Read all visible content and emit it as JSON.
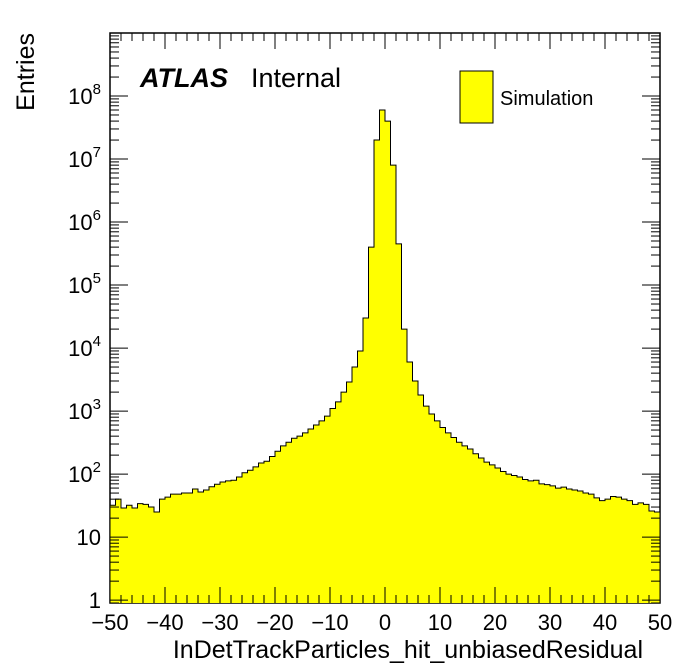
{
  "chart_data": {
    "type": "bar",
    "histogram": true,
    "xlabel": "InDetTrackParticles_hit_unbiasedResidual",
    "ylabel": "Entries",
    "xlim": [
      -50,
      50
    ],
    "ylim": [
      0.9,
      1000000000
    ],
    "log_y": true,
    "grid": false,
    "legend_position": "top-right",
    "label_atlas": "ATLAS",
    "label_status": "Internal",
    "x_ticks": [
      "−50",
      "−40",
      "−30",
      "−20",
      "−10",
      "0",
      "10",
      "20",
      "30",
      "40",
      "50"
    ],
    "x_tick_values": [
      -50,
      -40,
      -30,
      -20,
      -10,
      0,
      10,
      20,
      30,
      40,
      50
    ],
    "y_ticks": [
      {
        "value": 1,
        "base": "1",
        "exp": ""
      },
      {
        "value": 10,
        "base": "10",
        "exp": ""
      },
      {
        "value": 100,
        "base": "10",
        "exp": "2"
      },
      {
        "value": 1000,
        "base": "10",
        "exp": "3"
      },
      {
        "value": 10000,
        "base": "10",
        "exp": "4"
      },
      {
        "value": 100000,
        "base": "10",
        "exp": "5"
      },
      {
        "value": 1000000,
        "base": "10",
        "exp": "6"
      },
      {
        "value": 10000000,
        "base": "10",
        "exp": "7"
      },
      {
        "value": 100000000,
        "base": "10",
        "exp": "8"
      }
    ],
    "bin_width": 1,
    "x_min": -50,
    "series": [
      {
        "name": "Simulation",
        "color": "#ffff00",
        "edge_color": "#000000",
        "values": [
          32,
          40,
          29,
          32,
          29,
          34,
          33,
          30,
          25,
          40,
          43,
          48,
          48,
          50,
          50,
          58,
          52,
          56,
          63,
          69,
          75,
          78,
          80,
          90,
          105,
          115,
          130,
          150,
          160,
          190,
          230,
          280,
          320,
          370,
          400,
          450,
          520,
          600,
          700,
          830,
          1100,
          1400,
          2000,
          2900,
          5000,
          9000,
          30000,
          400000,
          20000000,
          60000000,
          40000000,
          8000000,
          450000,
          20000,
          6000,
          3000,
          1800,
          1200,
          900,
          700,
          550,
          450,
          380,
          320,
          280,
          250,
          210,
          180,
          155,
          140,
          125,
          110,
          100,
          95,
          90,
          82,
          78,
          80,
          70,
          68,
          65,
          60,
          62,
          58,
          56,
          54,
          50,
          48,
          42,
          38,
          40,
          44,
          43,
          40,
          38,
          33,
          35,
          33,
          26,
          25
        ]
      }
    ]
  }
}
